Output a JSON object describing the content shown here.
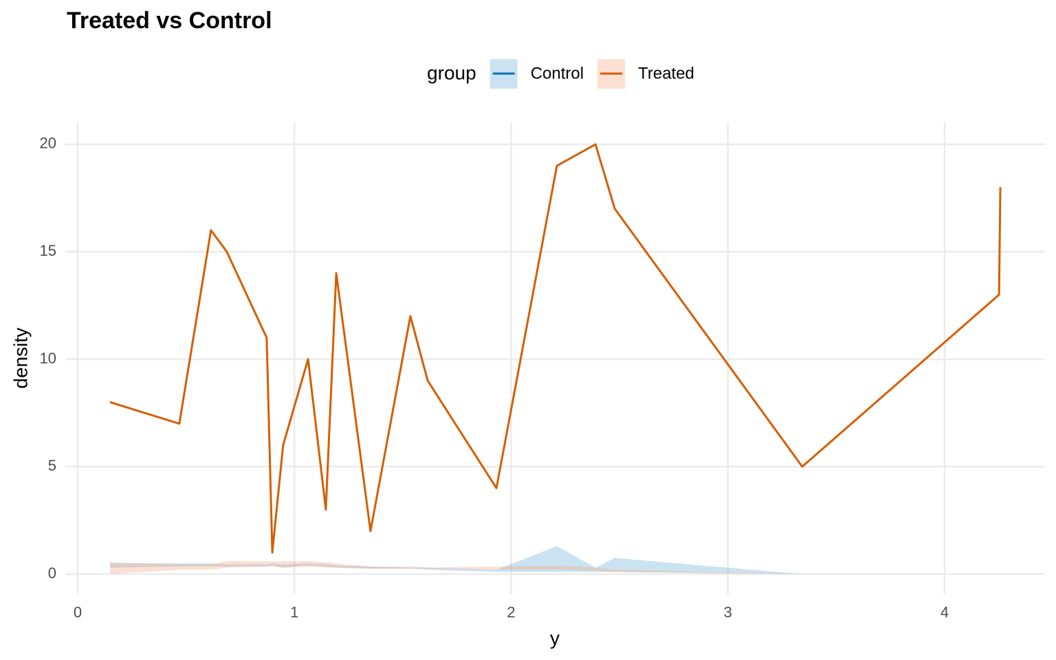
{
  "chart_data": {
    "type": "line",
    "title": "Treated vs Control",
    "x_label": "y",
    "y_label": "density",
    "legend_title": "group",
    "legend_position": "top",
    "grid": true,
    "x": [
      0.149,
      0.469,
      0.615,
      0.688,
      0.872,
      0.898,
      0.948,
      1.063,
      1.145,
      1.193,
      1.351,
      1.535,
      1.615,
      1.932,
      2.211,
      2.389,
      2.478,
      3.343,
      4.251,
      4.257
    ],
    "series": [
      {
        "name": "Control",
        "color": "#0072B2",
        "ribbon_color": "#6baed6",
        "lower": [
          0.3,
          0.35,
          0.35,
          0.35,
          0.35,
          0.4,
          0.3,
          0.4,
          0.35,
          0.3,
          0.25,
          0.25,
          0.2,
          0.1,
          0.1,
          0.1,
          0.1,
          0,
          0,
          0
        ],
        "upper": [
          0.5,
          0.5,
          0.5,
          0.45,
          0.45,
          0.5,
          0.45,
          0.5,
          0.45,
          0.4,
          0.35,
          0.3,
          0.3,
          0.2,
          1.3,
          0.3,
          0.75,
          0,
          0,
          0
        ]
      },
      {
        "name": "Treated",
        "color": "#D55E00",
        "ribbon_color": "#f4a582",
        "values": [
          8,
          7,
          16,
          15,
          11,
          1,
          6,
          10,
          3,
          14,
          2,
          12,
          9,
          4,
          19,
          20,
          17,
          5,
          13,
          18
        ],
        "lower": [
          0,
          0.2,
          0.2,
          0.3,
          0.35,
          0.35,
          0.3,
          0.35,
          0.3,
          0.3,
          0.25,
          0.25,
          0.25,
          0.2,
          0.2,
          0.15,
          0.1,
          0,
          0,
          0
        ],
        "upper": [
          0.55,
          0.45,
          0.45,
          0.6,
          0.6,
          0.6,
          0.6,
          0.6,
          0.55,
          0.5,
          0.35,
          0.35,
          0.3,
          0.35,
          0.4,
          0.3,
          0.2,
          0,
          0,
          0
        ]
      }
    ],
    "xlim": [
      -0.057,
      4.463
    ],
    "xticks": [
      0,
      1,
      2,
      3,
      4
    ],
    "ylim": [
      -0.96,
      21.02
    ],
    "yticks": [
      0,
      5,
      10,
      15,
      20
    ]
  }
}
